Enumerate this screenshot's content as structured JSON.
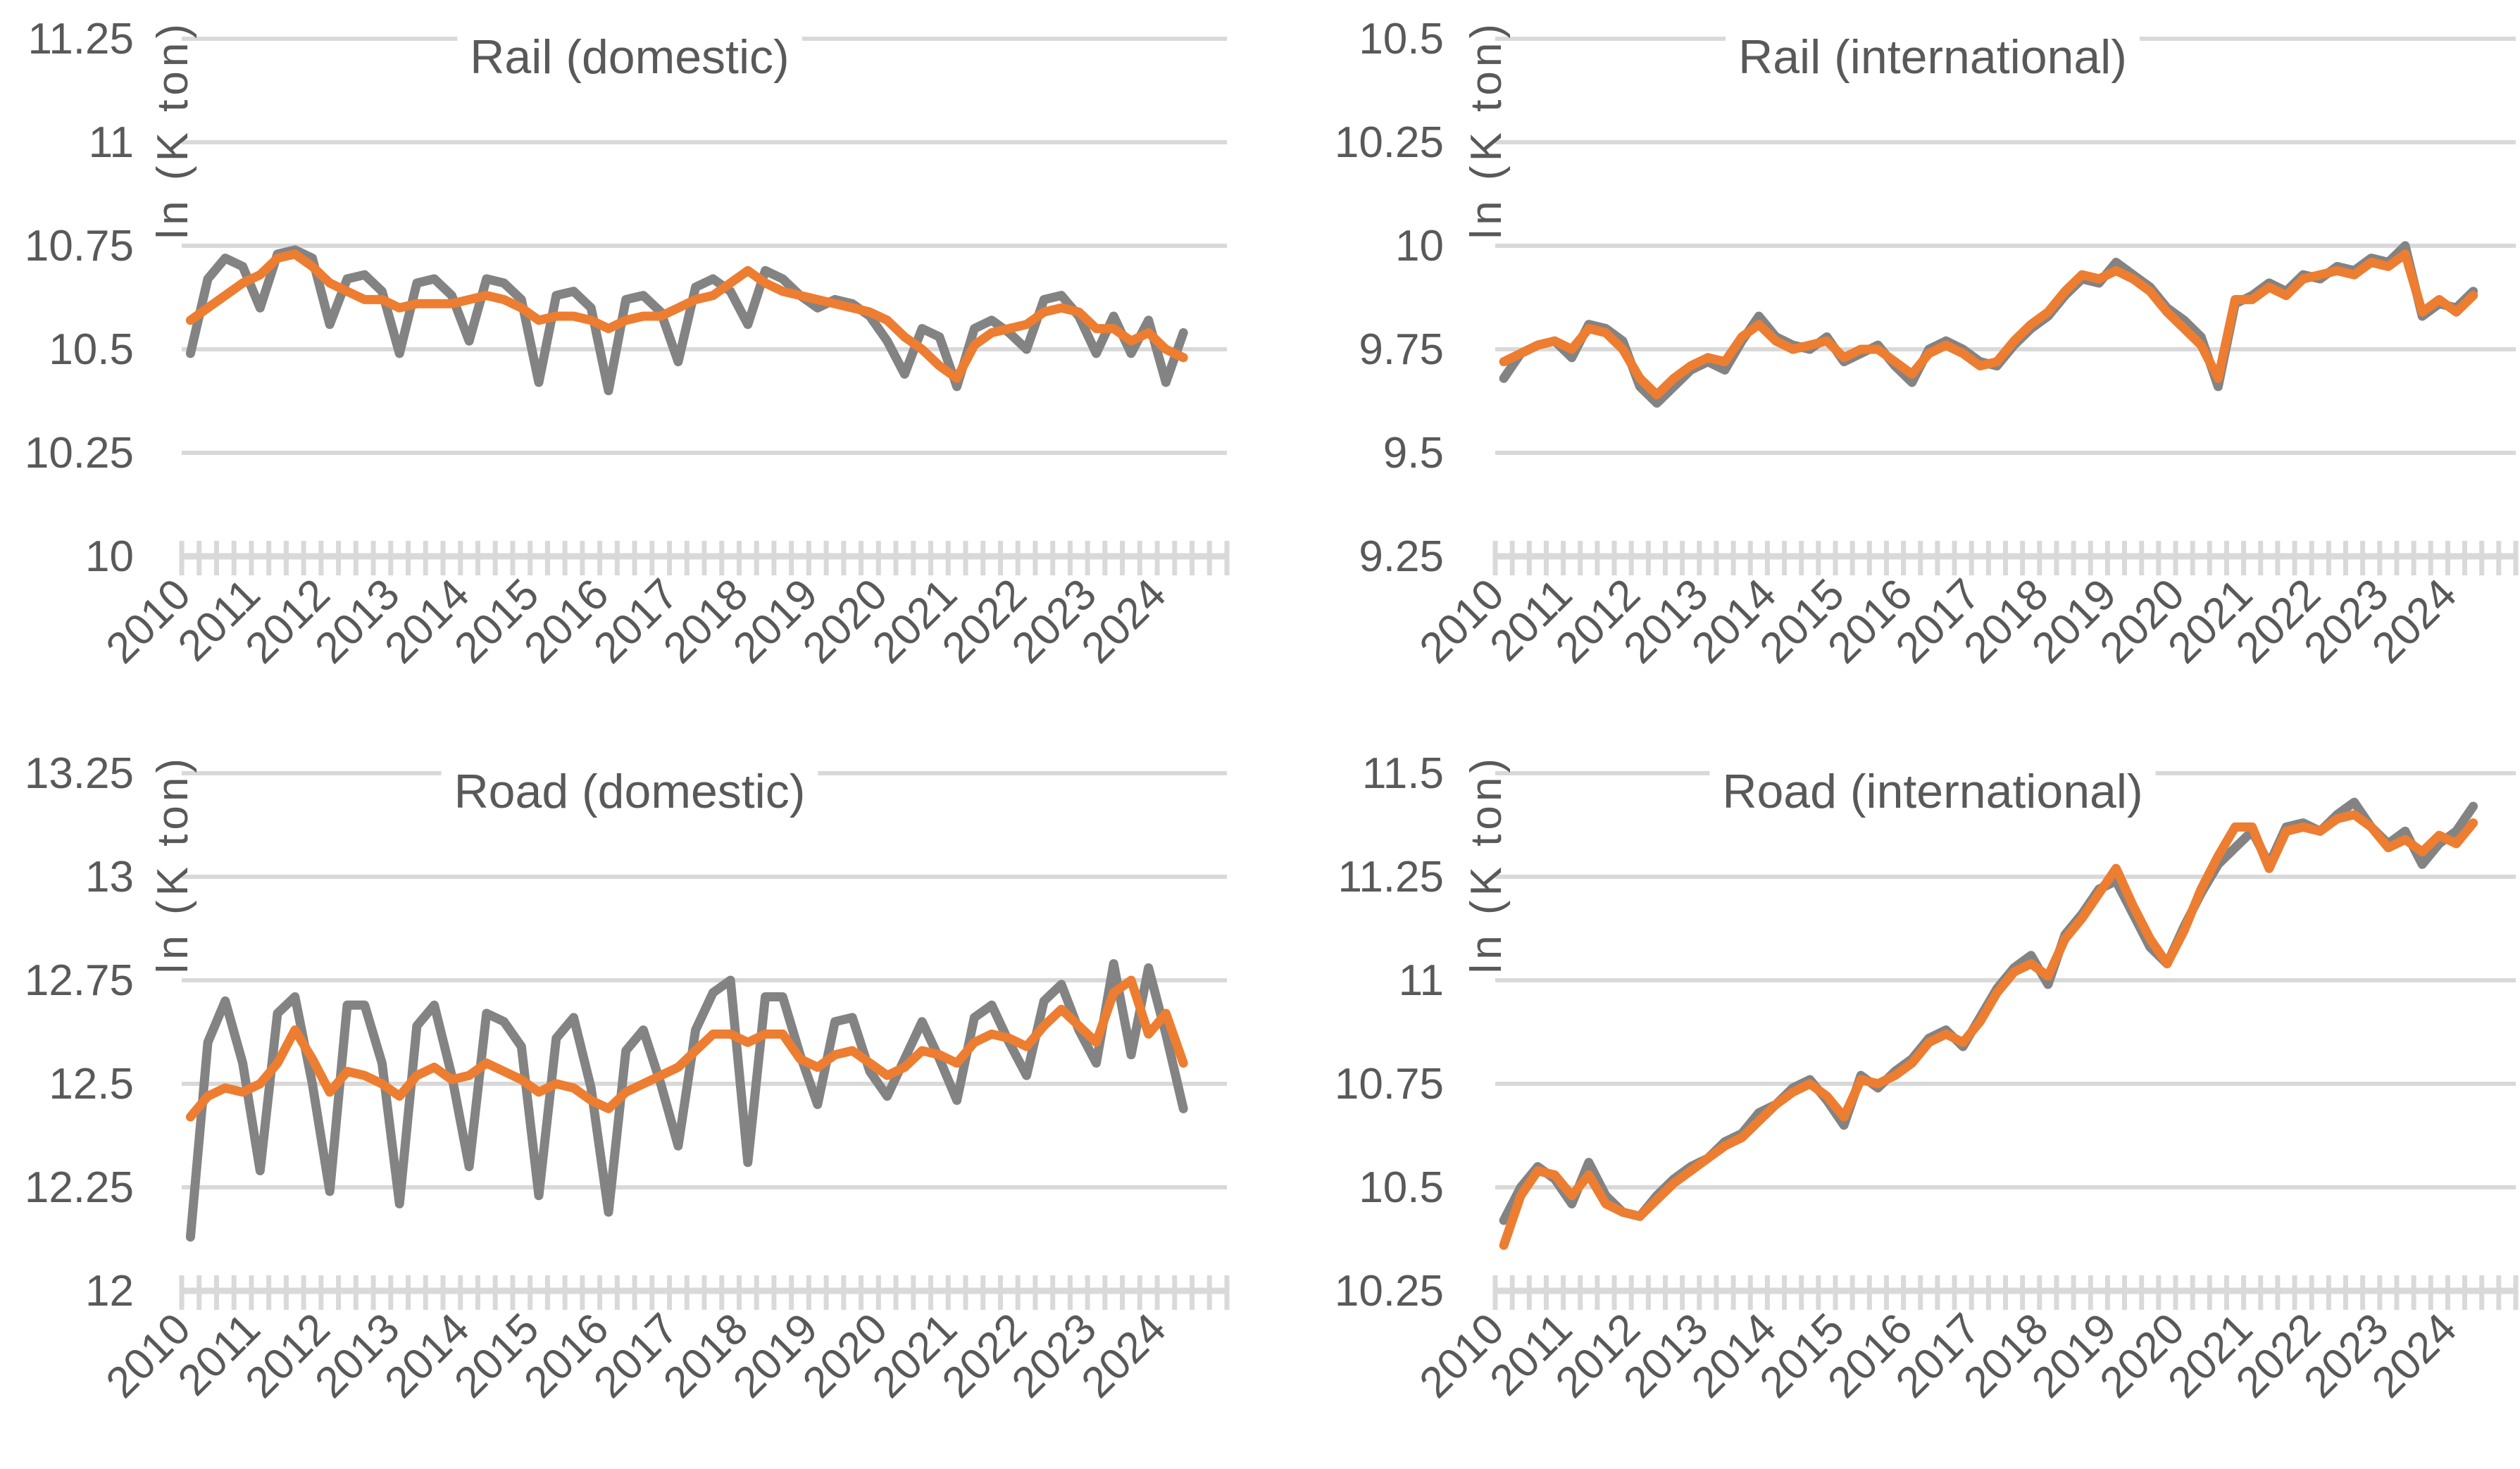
{
  "page": {
    "background": "#ffffff",
    "text_color": "#595959",
    "gridline_color": "#d9d9d9",
    "axis_color": "#d9d9d9"
  },
  "chart_data": [
    {
      "type": "line",
      "title": "Rail (domestic)",
      "ylabel": "ln (K ton)",
      "xlabel": "",
      "frequency": "quarterly",
      "grid": "horizontal",
      "legend": "none",
      "ylim": [
        10,
        11.25
      ],
      "ytick_labels": [
        "11.25",
        "11",
        "10.75",
        "10.5",
        "10.25",
        "10"
      ],
      "x_year_labels": [
        "2010",
        "2011",
        "2012",
        "2013",
        "2014",
        "2015",
        "2016",
        "2017",
        "2018",
        "2019",
        "2020",
        "2021",
        "2022",
        "2023",
        "2024"
      ],
      "series": [
        {
          "name": "gray-line",
          "color": "#838383",
          "values": [
            10.49,
            10.67,
            10.72,
            10.7,
            10.6,
            10.73,
            10.74,
            10.72,
            10.56,
            10.67,
            10.68,
            10.64,
            10.49,
            10.66,
            10.67,
            10.63,
            10.52,
            10.67,
            10.66,
            10.62,
            10.42,
            10.63,
            10.64,
            10.6,
            10.4,
            10.62,
            10.63,
            10.59,
            10.47,
            10.65,
            10.67,
            10.64,
            10.56,
            10.69,
            10.67,
            10.63,
            10.6,
            10.62,
            10.61,
            10.58,
            10.52,
            10.44,
            10.55,
            10.53,
            10.41,
            10.55,
            10.57,
            10.54,
            10.5,
            10.62,
            10.63,
            10.58,
            10.49,
            10.58,
            10.49,
            10.57,
            10.42,
            10.54
          ]
        },
        {
          "name": "orange-line",
          "color": "#ED7D31",
          "values": [
            10.57,
            10.6,
            10.63,
            10.66,
            10.68,
            10.72,
            10.73,
            10.7,
            10.66,
            10.64,
            10.62,
            10.62,
            10.6,
            10.61,
            10.61,
            10.61,
            10.62,
            10.63,
            10.62,
            10.6,
            10.57,
            10.58,
            10.58,
            10.57,
            10.55,
            10.57,
            10.58,
            10.58,
            10.6,
            10.62,
            10.63,
            10.66,
            10.69,
            10.66,
            10.64,
            10.63,
            10.62,
            10.61,
            10.6,
            10.59,
            10.57,
            10.53,
            10.5,
            10.46,
            10.43,
            10.51,
            10.54,
            10.55,
            10.56,
            10.59,
            10.6,
            10.59,
            10.55,
            10.55,
            10.52,
            10.54,
            10.5,
            10.48
          ]
        }
      ]
    },
    {
      "type": "line",
      "title": "Rail (international)",
      "ylabel": "ln (K ton)",
      "xlabel": "",
      "frequency": "quarterly",
      "grid": "horizontal",
      "legend": "none",
      "ylim": [
        9.25,
        10.5
      ],
      "ytick_labels": [
        "10.5",
        "10.25",
        "10",
        "9.75",
        "9.5",
        "9.25"
      ],
      "x_year_labels": [
        "2010",
        "2011",
        "2012",
        "2013",
        "2014",
        "2015",
        "2016",
        "2017",
        "2018",
        "2019",
        "2020",
        "2021",
        "2022",
        "2023",
        "2024"
      ],
      "series": [
        {
          "name": "gray-line",
          "color": "#838383",
          "values": [
            9.68,
            9.74,
            9.76,
            9.77,
            9.73,
            9.81,
            9.8,
            9.77,
            9.66,
            9.62,
            9.66,
            9.7,
            9.72,
            9.7,
            9.77,
            9.83,
            9.78,
            9.76,
            9.75,
            9.78,
            9.72,
            9.74,
            9.76,
            9.71,
            9.67,
            9.75,
            9.77,
            9.75,
            9.72,
            9.71,
            9.76,
            9.8,
            9.83,
            9.88,
            9.92,
            9.91,
            9.96,
            9.93,
            9.9,
            9.85,
            9.82,
            9.78,
            9.66,
            9.86,
            9.88,
            9.91,
            9.89,
            9.93,
            9.92,
            9.95,
            9.94,
            9.97,
            9.96,
            10.0,
            9.83,
            9.86,
            9.85,
            9.89
          ]
        },
        {
          "name": "orange-line",
          "color": "#ED7D31",
          "values": [
            9.72,
            9.74,
            9.76,
            9.77,
            9.75,
            9.8,
            9.79,
            9.75,
            9.68,
            9.64,
            9.68,
            9.71,
            9.73,
            9.72,
            9.78,
            9.81,
            9.77,
            9.75,
            9.76,
            9.77,
            9.73,
            9.75,
            9.75,
            9.72,
            9.69,
            9.74,
            9.76,
            9.74,
            9.71,
            9.72,
            9.77,
            9.81,
            9.84,
            9.89,
            9.93,
            9.92,
            9.94,
            9.92,
            9.89,
            9.84,
            9.8,
            9.76,
            9.68,
            9.87,
            9.87,
            9.9,
            9.88,
            9.92,
            9.93,
            9.94,
            9.93,
            9.96,
            9.95,
            9.98,
            9.84,
            9.87,
            9.84,
            9.88
          ]
        }
      ]
    },
    {
      "type": "line",
      "title": "Road (domestic)",
      "ylabel": "ln (K ton)",
      "xlabel": "",
      "frequency": "quarterly",
      "grid": "horizontal",
      "legend": "none",
      "ylim": [
        12,
        13.25
      ],
      "ytick_labels": [
        "13.25",
        "13",
        "12.75",
        "12.5",
        "12.25",
        "12"
      ],
      "x_year_labels": [
        "2010",
        "2011",
        "2012",
        "2013",
        "2014",
        "2015",
        "2016",
        "2017",
        "2018",
        "2019",
        "2020",
        "2021",
        "2022",
        "2023",
        "2024"
      ],
      "series": [
        {
          "name": "gray-line",
          "color": "#838383",
          "values": [
            12.13,
            12.6,
            12.7,
            12.55,
            12.29,
            12.67,
            12.71,
            12.5,
            12.24,
            12.69,
            12.69,
            12.55,
            12.21,
            12.64,
            12.69,
            12.52,
            12.3,
            12.67,
            12.65,
            12.59,
            12.23,
            12.61,
            12.66,
            12.49,
            12.19,
            12.58,
            12.63,
            12.5,
            12.35,
            12.63,
            12.72,
            12.75,
            12.31,
            12.71,
            12.71,
            12.57,
            12.45,
            12.65,
            12.66,
            12.53,
            12.47,
            12.56,
            12.65,
            12.56,
            12.46,
            12.66,
            12.69,
            12.6,
            12.52,
            12.7,
            12.74,
            12.63,
            12.55,
            12.79,
            12.57,
            12.78,
            12.62,
            12.44
          ]
        },
        {
          "name": "orange-line",
          "color": "#ED7D31",
          "values": [
            12.42,
            12.47,
            12.49,
            12.48,
            12.5,
            12.55,
            12.63,
            12.56,
            12.48,
            12.53,
            12.52,
            12.5,
            12.47,
            12.52,
            12.54,
            12.51,
            12.52,
            12.55,
            12.53,
            12.51,
            12.48,
            12.5,
            12.49,
            12.46,
            12.44,
            12.48,
            12.5,
            12.52,
            12.54,
            12.58,
            12.62,
            12.62,
            12.6,
            12.62,
            12.62,
            12.56,
            12.54,
            12.57,
            12.58,
            12.55,
            12.52,
            12.54,
            12.58,
            12.57,
            12.55,
            12.6,
            12.62,
            12.61,
            12.59,
            12.64,
            12.68,
            12.64,
            12.6,
            12.72,
            12.75,
            12.62,
            12.67,
            12.55
          ]
        }
      ]
    },
    {
      "type": "line",
      "title": "Road (international)",
      "ylabel": "ln (K ton)",
      "xlabel": "",
      "frequency": "quarterly",
      "grid": "horizontal",
      "legend": "none",
      "ylim": [
        10.25,
        11.5
      ],
      "ytick_labels": [
        "11.5",
        "11.25",
        "11",
        "10.75",
        "10.5",
        "10.25"
      ],
      "x_year_labels": [
        "2010",
        "2011",
        "2012",
        "2013",
        "2014",
        "2015",
        "2016",
        "2017",
        "2018",
        "2019",
        "2020",
        "2021",
        "2022",
        "2023",
        "2024"
      ],
      "series": [
        {
          "name": "gray-line",
          "color": "#838383",
          "values": [
            10.42,
            10.5,
            10.55,
            10.52,
            10.46,
            10.56,
            10.48,
            10.44,
            10.43,
            10.48,
            10.52,
            10.55,
            10.57,
            10.61,
            10.63,
            10.68,
            10.7,
            10.74,
            10.76,
            10.71,
            10.65,
            10.77,
            10.74,
            10.78,
            10.81,
            10.86,
            10.88,
            10.84,
            10.91,
            10.98,
            11.03,
            11.06,
            10.99,
            11.11,
            11.16,
            11.22,
            11.24,
            11.16,
            11.08,
            11.04,
            11.13,
            11.21,
            11.28,
            11.32,
            11.36,
            11.28,
            11.37,
            11.38,
            11.36,
            11.4,
            11.43,
            11.37,
            11.33,
            11.36,
            11.28,
            11.33,
            11.36,
            11.42
          ]
        },
        {
          "name": "orange-line",
          "color": "#ED7D31",
          "values": [
            10.36,
            10.48,
            10.54,
            10.53,
            10.48,
            10.53,
            10.46,
            10.44,
            10.43,
            10.47,
            10.51,
            10.54,
            10.57,
            10.6,
            10.62,
            10.66,
            10.7,
            10.73,
            10.75,
            10.72,
            10.67,
            10.76,
            10.75,
            10.77,
            10.8,
            10.85,
            10.87,
            10.85,
            10.9,
            10.97,
            11.02,
            11.04,
            11.01,
            11.1,
            11.15,
            11.21,
            11.27,
            11.18,
            11.1,
            11.04,
            11.12,
            11.22,
            11.3,
            11.37,
            11.37,
            11.27,
            11.36,
            11.37,
            11.36,
            11.39,
            11.4,
            11.37,
            11.32,
            11.34,
            11.31,
            11.35,
            11.33,
            11.38
          ]
        }
      ]
    }
  ]
}
